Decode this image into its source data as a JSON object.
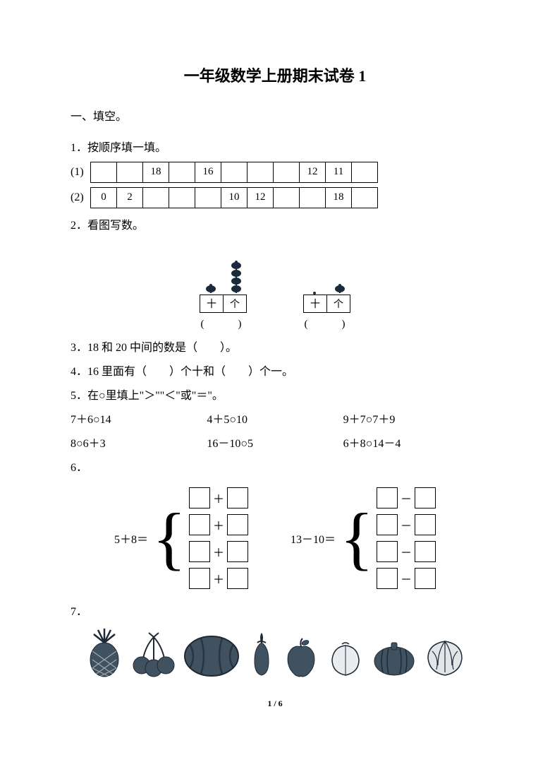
{
  "title": "一年级数学上册期末试卷 1",
  "section1": {
    "heading": "一、填空。"
  },
  "q1": {
    "label": "1．按顺序填一填。",
    "rows": [
      {
        "label": "(1)",
        "cells": [
          "",
          "",
          "18",
          "",
          "16",
          "",
          "",
          "",
          "12",
          "11",
          ""
        ]
      },
      {
        "label": "(2)",
        "cells": [
          "0",
          "2",
          "",
          "",
          "",
          "10",
          "12",
          "",
          "",
          "18",
          ""
        ]
      }
    ]
  },
  "q2": {
    "label": "2．看图写数。",
    "abacus": [
      {
        "tens_beads": 1,
        "ones_beads": 4,
        "tens_label": "十",
        "ones_label": "个",
        "paren": "(　　)"
      },
      {
        "tens_beads": 0,
        "ones_beads": 1,
        "tens_label": "十",
        "ones_label": "个",
        "paren": "(　　)"
      }
    ]
  },
  "q3": {
    "text": "3．18 和 20 中间的数是（　　）。"
  },
  "q4": {
    "text": "4．16 里面有（　　）个十和（　　）个一。"
  },
  "q5": {
    "label": "5．在○里填上\"＞\"\"＜\"或\"＝\"。",
    "items": [
      "7＋6○14",
      "4＋5○10",
      "9＋7○7＋9",
      "8○6＋3",
      "16－10○5",
      "6＋8○14－4"
    ]
  },
  "q6": {
    "label": "6．",
    "left": {
      "lhs": "5＋8＝",
      "op": "＋",
      "rows": 4
    },
    "right": {
      "lhs": "13－10＝",
      "op": "－",
      "rows": 4
    }
  },
  "q7": {
    "label": "7．",
    "items": [
      "pineapple",
      "cherries",
      "watermelon",
      "eggplant",
      "apple",
      "peach",
      "pumpkin",
      "cabbage"
    ]
  },
  "footer": "1 / 6",
  "colors": {
    "text": "#000000",
    "bg": "#ffffff",
    "abacus": "#1a2a3a",
    "fruit_fill": "#3a5266",
    "fruit_stroke": "#1a2a3a"
  }
}
